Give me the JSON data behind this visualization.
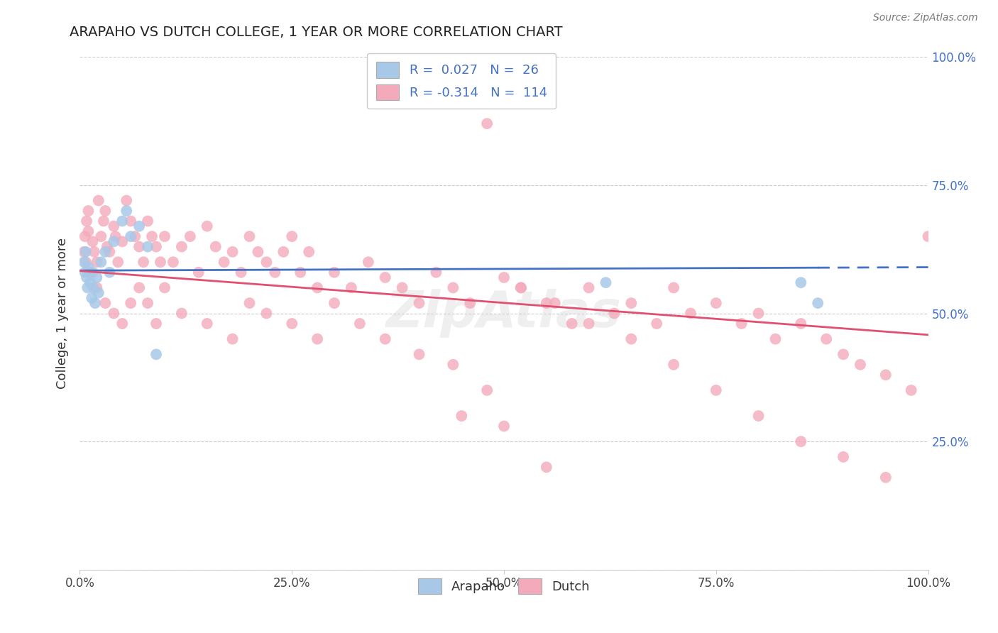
{
  "title": "ARAPAHO VS DUTCH COLLEGE, 1 YEAR OR MORE CORRELATION CHART",
  "source_text": "Source: ZipAtlas.com",
  "ylabel": "College, 1 year or more",
  "xlim": [
    0,
    1
  ],
  "ylim": [
    0,
    1
  ],
  "yticks": [
    0,
    0.25,
    0.5,
    0.75,
    1.0
  ],
  "ytick_labels": [
    "",
    "25.0%",
    "50.0%",
    "75.0%",
    "100.0%"
  ],
  "xtick_labels": [
    "0.0%",
    "25.0%",
    "50.0%",
    "75.0%",
    "100.0%"
  ],
  "xticks": [
    0,
    0.25,
    0.5,
    0.75,
    1.0
  ],
  "arapaho_color": "#A8C8E8",
  "dutch_color": "#F4AABB",
  "arapaho_line_color": "#4472C4",
  "dutch_line_color": "#E05070",
  "arapaho_R": 0.027,
  "arapaho_N": 26,
  "dutch_R": -0.314,
  "dutch_N": 114,
  "legend_label_color": "#4472C4",
  "background_color": "#FFFFFF",
  "grid_color": "#CCCCCC",
  "arapaho_x": [
    0.005,
    0.006,
    0.007,
    0.008,
    0.009,
    0.01,
    0.012,
    0.014,
    0.015,
    0.016,
    0.018,
    0.02,
    0.022,
    0.025,
    0.03,
    0.035,
    0.04,
    0.05,
    0.055,
    0.06,
    0.07,
    0.08,
    0.09,
    0.62,
    0.85,
    0.87
  ],
  "arapaho_y": [
    0.6,
    0.58,
    0.62,
    0.57,
    0.55,
    0.59,
    0.56,
    0.53,
    0.58,
    0.55,
    0.52,
    0.57,
    0.54,
    0.6,
    0.62,
    0.58,
    0.64,
    0.68,
    0.7,
    0.65,
    0.67,
    0.63,
    0.42,
    0.56,
    0.56,
    0.52
  ],
  "dutch_x": [
    0.005,
    0.006,
    0.007,
    0.008,
    0.01,
    0.01,
    0.012,
    0.015,
    0.017,
    0.02,
    0.022,
    0.025,
    0.028,
    0.03,
    0.032,
    0.035,
    0.04,
    0.042,
    0.045,
    0.05,
    0.055,
    0.06,
    0.065,
    0.07,
    0.075,
    0.08,
    0.085,
    0.09,
    0.095,
    0.1,
    0.11,
    0.12,
    0.13,
    0.14,
    0.15,
    0.16,
    0.17,
    0.18,
    0.19,
    0.2,
    0.21,
    0.22,
    0.23,
    0.24,
    0.25,
    0.26,
    0.27,
    0.28,
    0.3,
    0.32,
    0.34,
    0.36,
    0.38,
    0.4,
    0.42,
    0.44,
    0.46,
    0.48,
    0.5,
    0.52,
    0.55,
    0.58,
    0.6,
    0.63,
    0.65,
    0.68,
    0.7,
    0.72,
    0.75,
    0.78,
    0.8,
    0.82,
    0.85,
    0.88,
    0.9,
    0.92,
    0.95,
    0.98,
    1.0,
    0.02,
    0.03,
    0.04,
    0.05,
    0.06,
    0.07,
    0.08,
    0.09,
    0.1,
    0.12,
    0.15,
    0.18,
    0.2,
    0.22,
    0.25,
    0.28,
    0.3,
    0.33,
    0.36,
    0.4,
    0.44,
    0.48,
    0.52,
    0.56,
    0.6,
    0.65,
    0.7,
    0.75,
    0.8,
    0.85,
    0.9,
    0.95,
    0.45,
    0.5,
    0.55
  ],
  "dutch_y": [
    0.62,
    0.65,
    0.6,
    0.68,
    0.66,
    0.7,
    0.58,
    0.64,
    0.62,
    0.6,
    0.72,
    0.65,
    0.68,
    0.7,
    0.63,
    0.62,
    0.67,
    0.65,
    0.6,
    0.64,
    0.72,
    0.68,
    0.65,
    0.63,
    0.6,
    0.68,
    0.65,
    0.63,
    0.6,
    0.65,
    0.6,
    0.63,
    0.65,
    0.58,
    0.67,
    0.63,
    0.6,
    0.62,
    0.58,
    0.65,
    0.62,
    0.6,
    0.58,
    0.62,
    0.65,
    0.58,
    0.62,
    0.55,
    0.58,
    0.55,
    0.6,
    0.57,
    0.55,
    0.52,
    0.58,
    0.55,
    0.52,
    0.87,
    0.57,
    0.55,
    0.52,
    0.48,
    0.55,
    0.5,
    0.52,
    0.48,
    0.55,
    0.5,
    0.52,
    0.48,
    0.5,
    0.45,
    0.48,
    0.45,
    0.42,
    0.4,
    0.38,
    0.35,
    0.65,
    0.55,
    0.52,
    0.5,
    0.48,
    0.52,
    0.55,
    0.52,
    0.48,
    0.55,
    0.5,
    0.48,
    0.45,
    0.52,
    0.5,
    0.48,
    0.45,
    0.52,
    0.48,
    0.45,
    0.42,
    0.4,
    0.35,
    0.55,
    0.52,
    0.48,
    0.45,
    0.4,
    0.35,
    0.3,
    0.25,
    0.22,
    0.18,
    0.3,
    0.28,
    0.2
  ]
}
